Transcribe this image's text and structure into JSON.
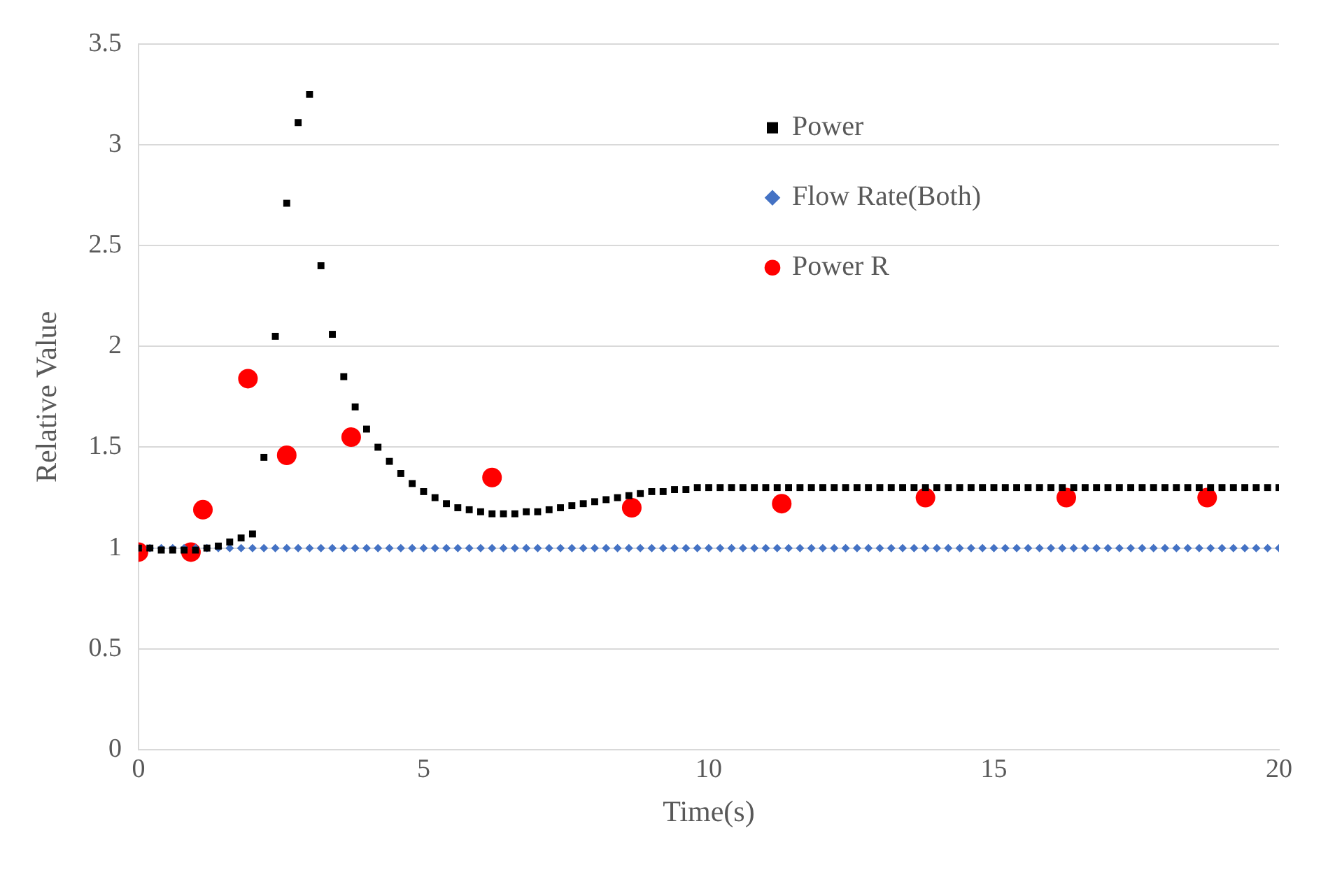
{
  "chart_data": {
    "type": "scatter",
    "xlabel": "Time(s)",
    "ylabel": "Relative Value",
    "xlim": [
      0,
      20
    ],
    "xticks": [
      0,
      5,
      10,
      15,
      20
    ],
    "ylim": [
      0,
      3.5
    ],
    "yticks": [
      0,
      0.5,
      1,
      1.5,
      2,
      2.5,
      3,
      3.5
    ],
    "grid": "y",
    "legend": "top right",
    "series": [
      {
        "name": "Power",
        "color": "#000000",
        "marker": "square",
        "x": [
          0,
          0.2,
          0.4,
          0.6,
          0.8,
          1,
          1.2,
          1.4,
          1.6,
          1.8,
          2,
          2.2,
          2.4,
          2.6,
          2.8,
          3,
          3.2,
          3.4,
          3.6,
          3.8,
          4,
          4.2,
          4.4,
          4.6,
          4.8,
          5,
          5.2,
          5.4,
          5.6,
          5.8,
          6,
          6.2,
          6.4,
          6.6,
          6.8,
          7,
          7.2,
          7.4,
          7.6,
          7.8,
          8,
          8.2,
          8.4,
          8.6,
          8.8,
          9,
          9.2,
          9.4,
          9.6,
          9.8,
          10,
          10.2,
          10.4,
          10.6,
          10.8,
          11,
          11.2,
          11.4,
          11.6,
          11.8,
          12,
          12.2,
          12.4,
          12.6,
          12.8,
          13,
          13.2,
          13.4,
          13.6,
          13.8,
          14,
          14.2,
          14.4,
          14.6,
          14.8,
          15,
          15.2,
          15.4,
          15.6,
          15.8,
          16,
          16.2,
          16.4,
          16.6,
          16.8,
          17,
          17.2,
          17.4,
          17.6,
          17.8,
          18,
          18.2,
          18.4,
          18.6,
          18.8,
          19,
          19.2,
          19.4,
          19.6,
          19.8,
          20
        ],
        "values": [
          1,
          1,
          0.99,
          0.99,
          0.99,
          0.99,
          1,
          1.01,
          1.03,
          1.05,
          1.07,
          1.45,
          2.05,
          2.71,
          3.11,
          3.25,
          2.4,
          2.06,
          1.85,
          1.7,
          1.59,
          1.5,
          1.43,
          1.37,
          1.32,
          1.28,
          1.25,
          1.22,
          1.2,
          1.19,
          1.18,
          1.17,
          1.17,
          1.17,
          1.18,
          1.18,
          1.19,
          1.2,
          1.21,
          1.22,
          1.23,
          1.24,
          1.25,
          1.26,
          1.27,
          1.28,
          1.28,
          1.29,
          1.29,
          1.3,
          1.3,
          1.3,
          1.3,
          1.3,
          1.3,
          1.3,
          1.3,
          1.3,
          1.3,
          1.3,
          1.3,
          1.3,
          1.3,
          1.3,
          1.3,
          1.3,
          1.3,
          1.3,
          1.3,
          1.3,
          1.3,
          1.3,
          1.3,
          1.3,
          1.3,
          1.3,
          1.3,
          1.3,
          1.3,
          1.3,
          1.3,
          1.3,
          1.3,
          1.3,
          1.3,
          1.3,
          1.3,
          1.3,
          1.3,
          1.3,
          1.3,
          1.3,
          1.3,
          1.3,
          1.3,
          1.3,
          1.3,
          1.3,
          1.3,
          1.3,
          1.3
        ]
      },
      {
        "name": "Flow Rate(Both)",
        "color": "#4472c4",
        "marker": "diamond",
        "x": [
          0,
          0.2,
          0.4,
          0.6,
          0.8,
          1,
          1.2,
          1.4,
          1.6,
          1.8,
          2,
          2.2,
          2.4,
          2.6,
          2.8,
          3,
          3.2,
          3.4,
          3.6,
          3.8,
          4,
          4.2,
          4.4,
          4.6,
          4.8,
          5,
          5.2,
          5.4,
          5.6,
          5.8,
          6,
          6.2,
          6.4,
          6.6,
          6.8,
          7,
          7.2,
          7.4,
          7.6,
          7.8,
          8,
          8.2,
          8.4,
          8.6,
          8.8,
          9,
          9.2,
          9.4,
          9.6,
          9.8,
          10,
          10.2,
          10.4,
          10.6,
          10.8,
          11,
          11.2,
          11.4,
          11.6,
          11.8,
          12,
          12.2,
          12.4,
          12.6,
          12.8,
          13,
          13.2,
          13.4,
          13.6,
          13.8,
          14,
          14.2,
          14.4,
          14.6,
          14.8,
          15,
          15.2,
          15.4,
          15.6,
          15.8,
          16,
          16.2,
          16.4,
          16.6,
          16.8,
          17,
          17.2,
          17.4,
          17.6,
          17.8,
          18,
          18.2,
          18.4,
          18.6,
          18.8,
          19,
          19.2,
          19.4,
          19.6,
          19.8,
          20
        ],
        "values": [
          1,
          1,
          1,
          1,
          1,
          1,
          1,
          1,
          1,
          1,
          1,
          1,
          1,
          1,
          1,
          1,
          1,
          1,
          1,
          1,
          1,
          1,
          1,
          1,
          1,
          1,
          1,
          1,
          1,
          1,
          1,
          1,
          1,
          1,
          1,
          1,
          1,
          1,
          1,
          1,
          1,
          1,
          1,
          1,
          1,
          1,
          1,
          1,
          1,
          1,
          1,
          1,
          1,
          1,
          1,
          1,
          1,
          1,
          1,
          1,
          1,
          1,
          1,
          1,
          1,
          1,
          1,
          1,
          1,
          1,
          1,
          1,
          1,
          1,
          1,
          1,
          1,
          1,
          1,
          1,
          1,
          1,
          1,
          1,
          1,
          1,
          1,
          1,
          1,
          1,
          1,
          1,
          1,
          1,
          1,
          1,
          1,
          1,
          1,
          1,
          1
        ]
      },
      {
        "name": "Power R",
        "color": "#ff0000",
        "marker": "circle",
        "x": [
          0,
          0.92,
          1.13,
          1.92,
          2.6,
          3.73,
          6.2,
          8.65,
          11.28,
          13.8,
          16.27,
          18.74
        ],
        "values": [
          0.98,
          0.98,
          1.19,
          1.84,
          1.46,
          1.55,
          1.35,
          1.2,
          1.22,
          1.25,
          1.25,
          1.25
        ]
      }
    ]
  }
}
